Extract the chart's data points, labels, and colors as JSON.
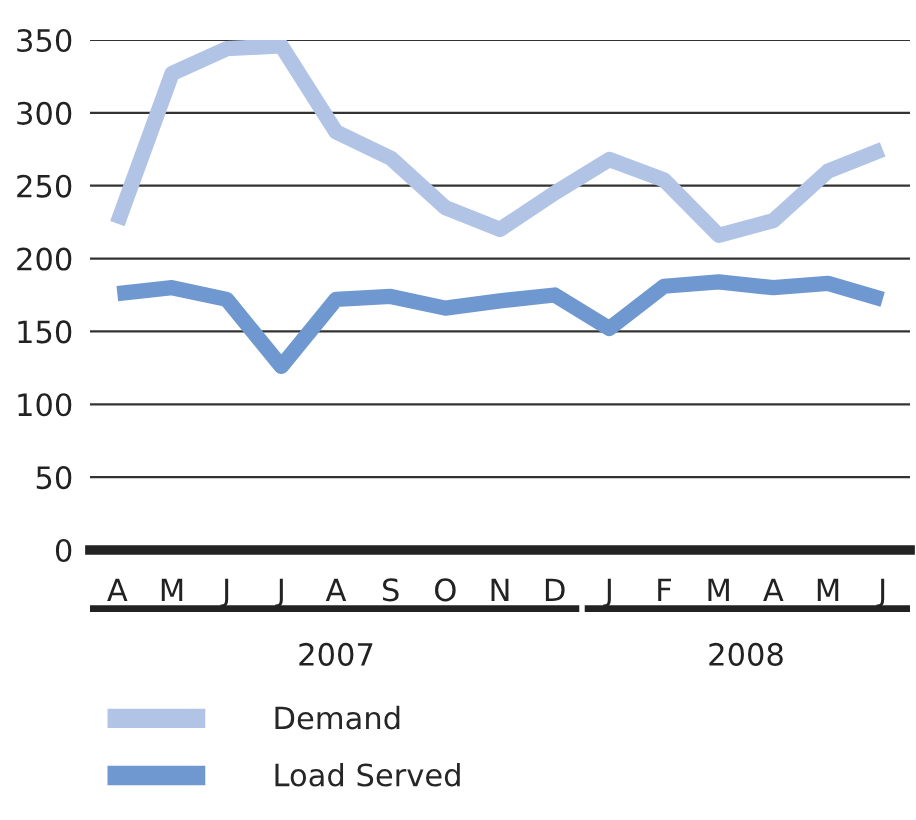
{
  "chart_data": {
    "type": "line",
    "categories": [
      "A",
      "M",
      "J",
      "J",
      "A",
      "S",
      "O",
      "N",
      "D",
      "J",
      "F",
      "M",
      "A",
      "M",
      "J"
    ],
    "series": [
      {
        "name": "Demand",
        "color": "#b1c4e6",
        "values": [
          224,
          327,
          344,
          346,
          287,
          269,
          235,
          220,
          245,
          268,
          254,
          216,
          226,
          260,
          275
        ]
      },
      {
        "name": "Load Served",
        "color": "#6f98d0",
        "values": [
          176,
          180,
          172,
          126,
          172,
          174,
          166,
          171,
          175,
          152,
          181,
          184,
          180,
          183,
          172
        ]
      }
    ],
    "ylim": [
      0,
      350
    ],
    "yticks": [
      0,
      50,
      100,
      150,
      200,
      250,
      300,
      350
    ],
    "grid": "y",
    "legend": "bottom left",
    "marker": "none",
    "line_style": "solid",
    "annotations": [
      "2007",
      "2008"
    ]
  }
}
